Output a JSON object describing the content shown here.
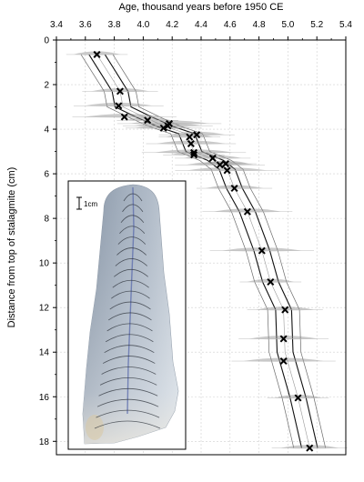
{
  "chart_data": {
    "type": "scatter",
    "title": "",
    "xlabel": "Age, thousand years before 1950 CE",
    "ylabel": "Distance from top of stalagmite (cm)",
    "xlim": [
      3.4,
      5.4
    ],
    "ylim": [
      0,
      18.6
    ],
    "x_axis_position": "top",
    "y_axis_inverted": true,
    "grid": true,
    "x_ticks": [
      "3.4",
      "3.6",
      "3.8",
      "4.0",
      "4.2",
      "4.4",
      "4.6",
      "4.8",
      "5.0",
      "5.2",
      "5.4"
    ],
    "y_ticks": [
      "0",
      "2",
      "4",
      "6",
      "8",
      "10",
      "12",
      "14",
      "16",
      "18"
    ],
    "series": [
      {
        "name": "",
        "marker": "x",
        "x": [
          3.68,
          3.84,
          3.83,
          3.87,
          4.03,
          4.14,
          4.17,
          4.18,
          4.32,
          4.37,
          4.33,
          4.35,
          4.35,
          4.48,
          4.53,
          4.58,
          4.57,
          4.63,
          4.72,
          4.82,
          4.88,
          4.98,
          4.97,
          4.97,
          5.07,
          5.15
        ],
        "y": [
          0.65,
          2.3,
          2.95,
          3.45,
          3.6,
          3.95,
          3.85,
          3.75,
          4.35,
          4.25,
          4.65,
          5.05,
          5.15,
          5.3,
          5.6,
          5.85,
          5.55,
          6.65,
          7.7,
          9.45,
          10.85,
          12.1,
          13.4,
          14.4,
          16.05,
          18.3
        ]
      }
    ],
    "model_lines": {
      "x": [
        3.68,
        3.84,
        3.86,
        4.02,
        4.16,
        4.3,
        4.35,
        4.5,
        4.58,
        4.63,
        4.72,
        4.82,
        4.88,
        4.97,
        4.98,
        5.07,
        5.15
      ],
      "y": [
        0.65,
        2.3,
        3.0,
        3.5,
        3.9,
        4.2,
        5.0,
        5.4,
        5.8,
        6.65,
        7.7,
        9.45,
        10.85,
        12.1,
        14.0,
        16.05,
        18.3
      ],
      "band_widths": [
        0.055,
        0.11
      ]
    },
    "inset": {
      "label": "scale-bar",
      "scale_text": "1cm",
      "growth_lines": 22
    }
  }
}
